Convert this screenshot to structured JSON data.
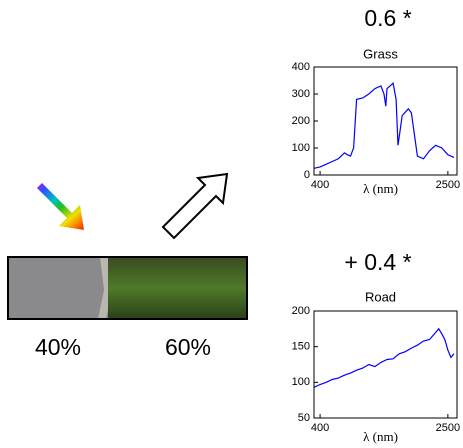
{
  "texts": {
    "left_percent": "40%",
    "right_percent": "60%",
    "grass_coefficient": "0.6 *",
    "road_coefficient": "+ 0.4 *"
  },
  "chart_data": [
    {
      "type": "line",
      "title": "Grass",
      "x_label": "λ (nm)",
      "color": "#0000ff",
      "x": [
        300,
        400,
        500,
        600,
        700,
        800,
        850,
        900,
        950,
        1000,
        1100,
        1200,
        1300,
        1400,
        1450,
        1480,
        1500,
        1550,
        1600,
        1650,
        1680,
        1750,
        1850,
        1900,
        1950,
        2000,
        2100,
        2200,
        2300,
        2400,
        2500,
        2600
      ],
      "values": [
        25,
        30,
        40,
        50,
        60,
        82,
        75,
        70,
        100,
        280,
        285,
        300,
        320,
        330,
        300,
        255,
        320,
        330,
        340,
        280,
        110,
        220,
        245,
        230,
        150,
        70,
        60,
        90,
        110,
        100,
        75,
        65
      ],
      "xlim": [
        300,
        2650
      ],
      "xticks": [
        400,
        2500
      ],
      "ylim": [
        0,
        400
      ],
      "yticks": [
        0,
        100,
        200,
        300,
        400
      ]
    },
    {
      "type": "line",
      "title": "Road",
      "x_label": "λ (nm)",
      "color": "#0000ff",
      "x": [
        300,
        400,
        500,
        600,
        700,
        800,
        900,
        1000,
        1100,
        1200,
        1300,
        1400,
        1500,
        1600,
        1700,
        1800,
        1900,
        2000,
        2100,
        2200,
        2300,
        2350,
        2400,
        2450,
        2500,
        2550,
        2600
      ],
      "values": [
        93,
        97,
        100,
        104,
        106,
        110,
        113,
        117,
        120,
        125,
        122,
        128,
        132,
        133,
        140,
        143,
        148,
        152,
        158,
        160,
        170,
        175,
        168,
        160,
        145,
        135,
        140
      ],
      "xlim": [
        300,
        2650
      ],
      "xticks": [
        400,
        2500
      ],
      "ylim": [
        50,
        200
      ],
      "yticks": [
        50,
        100,
        150,
        200
      ]
    }
  ]
}
